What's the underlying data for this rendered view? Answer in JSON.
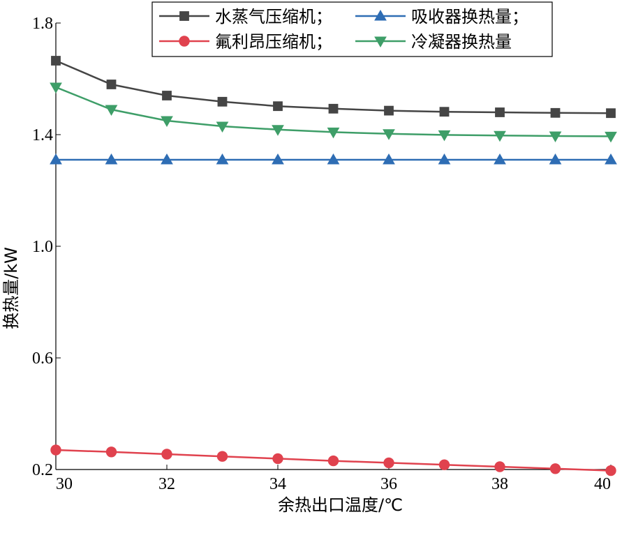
{
  "chart_data": {
    "type": "line",
    "xlabel": "余热出口温度/℃",
    "ylabel": "换热量/kW",
    "xlim": [
      30,
      40
    ],
    "ylim": [
      0.2,
      1.8
    ],
    "xticks": [
      "30",
      "32",
      "34",
      "36",
      "38",
      "40"
    ],
    "yticks": [
      "0.2",
      "0.6",
      "1.0",
      "1.4",
      "1.8"
    ],
    "grid": false,
    "legend_position": "top",
    "x": [
      30,
      31,
      32,
      33,
      34,
      35,
      36,
      37,
      38,
      39,
      40
    ],
    "series": [
      {
        "name": "水蒸气压缩机；",
        "color": "#454545",
        "marker": "square",
        "values": [
          1.665,
          1.58,
          1.54,
          1.518,
          1.502,
          1.493,
          1.486,
          1.482,
          1.48,
          1.478,
          1.477
        ]
      },
      {
        "name": "吸收器换热量；",
        "color": "#2e6db4",
        "marker": "triangle-up",
        "values": [
          1.31,
          1.31,
          1.31,
          1.31,
          1.31,
          1.31,
          1.31,
          1.31,
          1.31,
          1.31,
          1.31
        ]
      },
      {
        "name": "氟利昂压缩机；",
        "color": "#e0424e",
        "marker": "circle",
        "values": [
          0.27,
          0.263,
          0.255,
          0.247,
          0.239,
          0.231,
          0.224,
          0.217,
          0.21,
          0.203,
          0.196
        ]
      },
      {
        "name": "冷凝器换热量",
        "color": "#3e9e68",
        "marker": "triangle-down",
        "values": [
          1.57,
          1.49,
          1.45,
          1.43,
          1.418,
          1.409,
          1.403,
          1.399,
          1.397,
          1.395,
          1.394
        ]
      }
    ]
  }
}
